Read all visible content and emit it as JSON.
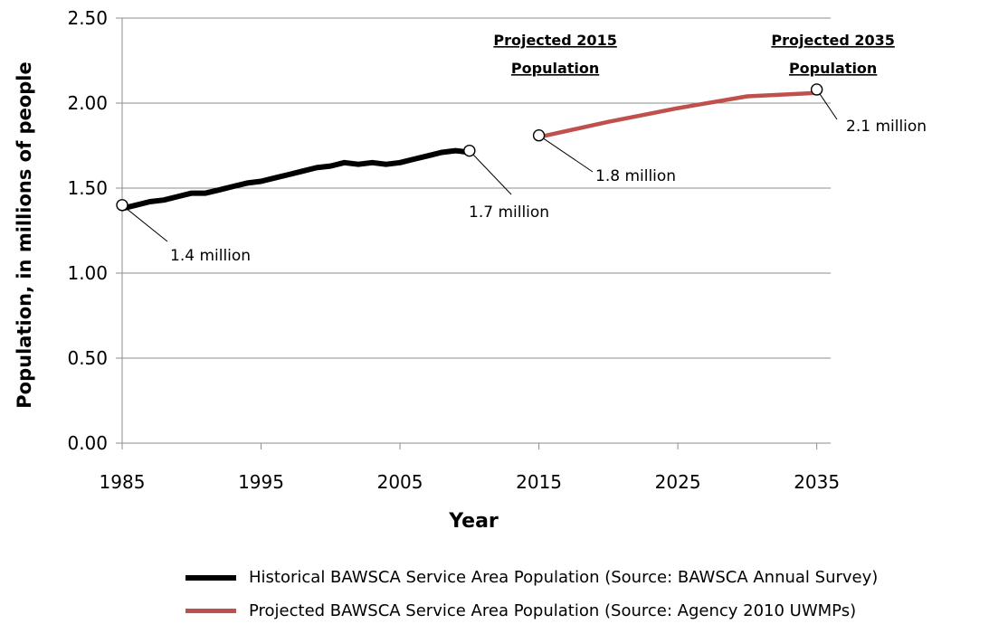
{
  "chart_data": {
    "type": "line",
    "xlabel": "Year",
    "ylabel": "Population, in millions of people",
    "xlim": [
      1985,
      2036
    ],
    "ylim": [
      0,
      2.5
    ],
    "x_ticks": [
      1985,
      1995,
      2005,
      2015,
      2025,
      2035
    ],
    "y_ticks": [
      "0.00",
      "0.50",
      "1.00",
      "1.50",
      "2.00",
      "2.50"
    ],
    "grid": "horizontal",
    "legend_position": "bottom",
    "series": [
      {
        "name": "Historical BAWSCA Service Area Population (Source: BAWSCA Annual Survey)",
        "color": "#000000",
        "x": [
          1985,
          1986,
          1987,
          1988,
          1989,
          1990,
          1991,
          1992,
          1993,
          1994,
          1995,
          1996,
          1997,
          1998,
          1999,
          2000,
          2001,
          2002,
          2003,
          2004,
          2005,
          2006,
          2007,
          2008,
          2009,
          2010
        ],
        "y": [
          1.38,
          1.4,
          1.42,
          1.43,
          1.45,
          1.47,
          1.47,
          1.49,
          1.51,
          1.53,
          1.54,
          1.56,
          1.58,
          1.6,
          1.62,
          1.63,
          1.65,
          1.64,
          1.65,
          1.64,
          1.65,
          1.67,
          1.69,
          1.71,
          1.72,
          1.71
        ]
      },
      {
        "name": "Projected BAWSCA Service Area Population (Source: Agency 2010 UWMPs)",
        "color": "#c0504d",
        "x": [
          2015,
          2020,
          2025,
          2030,
          2035
        ],
        "y": [
          1.8,
          1.89,
          1.97,
          2.04,
          2.06
        ]
      }
    ],
    "markers": [
      {
        "x": 1985,
        "y": 1.4,
        "label": "1.4 million"
      },
      {
        "x": 2010,
        "y": 1.72,
        "label": "1.7 million"
      },
      {
        "x": 2015,
        "y": 1.81,
        "label": "1.8 million"
      },
      {
        "x": 2035,
        "y": 2.08,
        "label": "2.1 million"
      }
    ],
    "annotations": [
      {
        "x": 2015,
        "lines": [
          "Projected 2015",
          "Population"
        ]
      },
      {
        "x": 2035,
        "lines": [
          "Projected 2035",
          "Population"
        ]
      }
    ]
  }
}
